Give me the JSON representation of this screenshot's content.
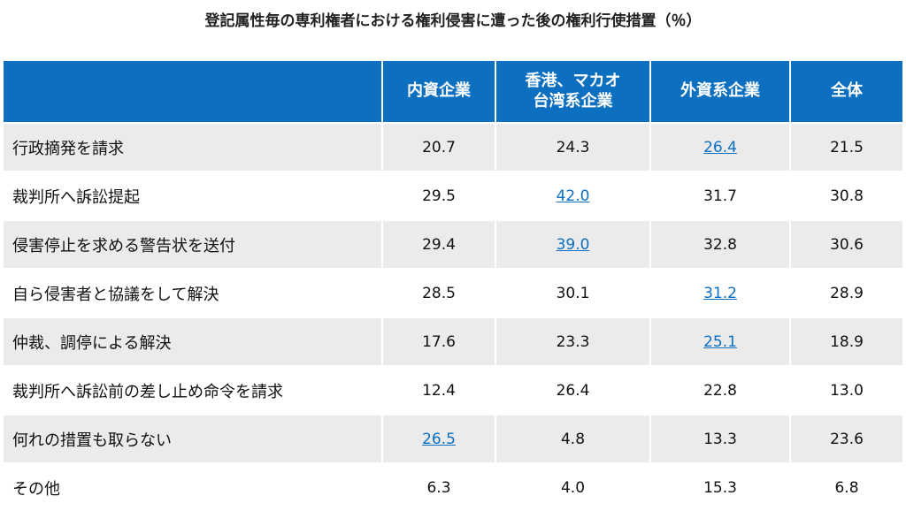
{
  "chart_data": {
    "type": "table",
    "title": "登記属性毎の専利権者における権利侵害に遭った後の権利行使措置（％）",
    "columns": [
      "",
      "内資企業",
      "香港、マカオ台湾系企業",
      "外資系企業",
      "全体"
    ],
    "rows": [
      {
        "label": "行政摘発を請求",
        "values": [
          "20.7",
          "24.3",
          "26.4",
          "21.5"
        ],
        "highlight": 2
      },
      {
        "label": "裁判所へ訴訟提起",
        "values": [
          "29.5",
          "42.0",
          "31.7",
          "30.8"
        ],
        "highlight": 1
      },
      {
        "label": "侵害停止を求める警告状を送付",
        "values": [
          "29.4",
          "39.0",
          "32.8",
          "30.6"
        ],
        "highlight": 1
      },
      {
        "label": "自ら侵害者と協議をして解決",
        "values": [
          "28.5",
          "30.1",
          "31.2",
          "28.9"
        ],
        "highlight": 2
      },
      {
        "label": "仲裁、調停による解決",
        "values": [
          "17.6",
          "23.3",
          "25.1",
          "18.9"
        ],
        "highlight": 2
      },
      {
        "label": "裁判所へ訴訟前の差し止め命令を請求",
        "values": [
          "12.4",
          "26.4",
          "22.8",
          "13.0"
        ],
        "highlight": -1
      },
      {
        "label": "何れの措置も取らない",
        "values": [
          "26.5",
          "4.8",
          "13.3",
          "23.6"
        ],
        "highlight": 0
      },
      {
        "label": "その他",
        "values": [
          "6.3",
          "4.0",
          "15.3",
          "6.8"
        ],
        "highlight": -1
      }
    ]
  },
  "colors": {
    "header": "#0c6fc0",
    "highlight_text": "#0b6fc2",
    "stripe": "#ebebeb"
  }
}
